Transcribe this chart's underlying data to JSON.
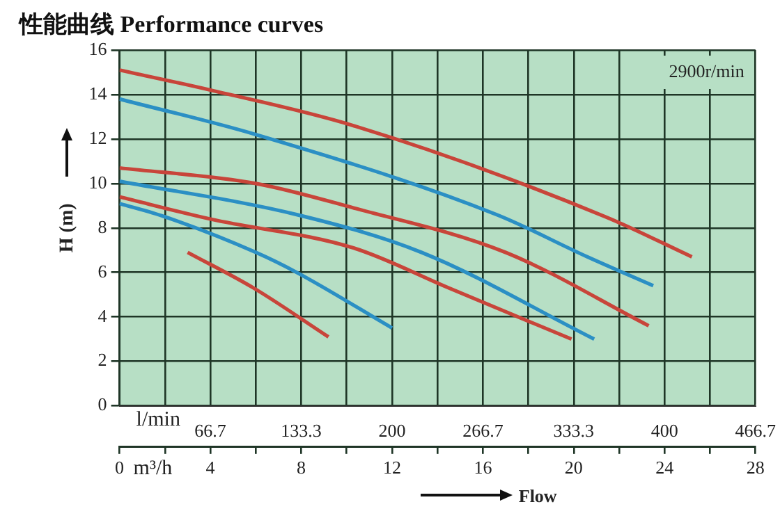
{
  "chart_data": {
    "type": "line",
    "title": "性能曲线  Performance curves",
    "xlabel": "Flow",
    "ylabel": "H (m)",
    "x2label": "l/min",
    "annotations": [
      "2900r/min",
      "m³/h"
    ],
    "xlim": [
      0,
      28
    ],
    "xticks": [
      0,
      {
        "value": 2,
        "label": null
      },
      4,
      {
        "value": 6,
        "label": null
      },
      8,
      {
        "value": 10,
        "label": null
      },
      12,
      {
        "value": 14,
        "label": null
      },
      16,
      {
        "value": 18,
        "label": null
      },
      20,
      {
        "value": 22,
        "label": null
      },
      24,
      {
        "value": 26,
        "label": null
      },
      28
    ],
    "x2lim": [
      0,
      466.7
    ],
    "x2ticks": [
      66.7,
      133.3,
      200,
      266.7,
      333.3,
      400,
      466.7
    ],
    "ylim": [
      0,
      16
    ],
    "yticks": [
      0,
      2,
      4,
      6,
      8,
      10,
      12,
      14,
      16
    ],
    "grid": true,
    "series": [
      {
        "color": "#c8453a",
        "x": [
          0,
          4,
          10.3,
          21.4,
          25.2
        ],
        "values": [
          15.1,
          14.2,
          12.6,
          8.5,
          6.7
        ]
      },
      {
        "color": "#2b8fc4",
        "x": [
          0,
          6,
          16.6,
          20.6,
          23.5
        ],
        "values": [
          13.8,
          12.2,
          8.6,
          6.7,
          5.4
        ]
      },
      {
        "color": "#c8453a",
        "x": [
          0,
          6,
          10.3,
          17,
          23.3
        ],
        "values": [
          10.7,
          10,
          8.9,
          6.9,
          3.6
        ]
      },
      {
        "color": "#2b8fc4",
        "x": [
          0,
          7.8,
          13.3,
          20.9
        ],
        "values": [
          10.1,
          8.6,
          6.9,
          3
        ]
      },
      {
        "color": "#c8453a",
        "x": [
          0,
          4,
          10.3,
          14.5,
          19.9
        ],
        "values": [
          9.4,
          8.4,
          7.1,
          5.3,
          3
        ]
      },
      {
        "color": "#2b8fc4",
        "x": [
          0,
          2,
          6,
          7.8,
          12
        ],
        "values": [
          9.1,
          8.5,
          6.9,
          6,
          3.5
        ]
      },
      {
        "color": "#c8453a",
        "x": [
          3,
          5.9,
          9.2
        ],
        "values": [
          6.9,
          5.3,
          3.1
        ]
      }
    ]
  }
}
